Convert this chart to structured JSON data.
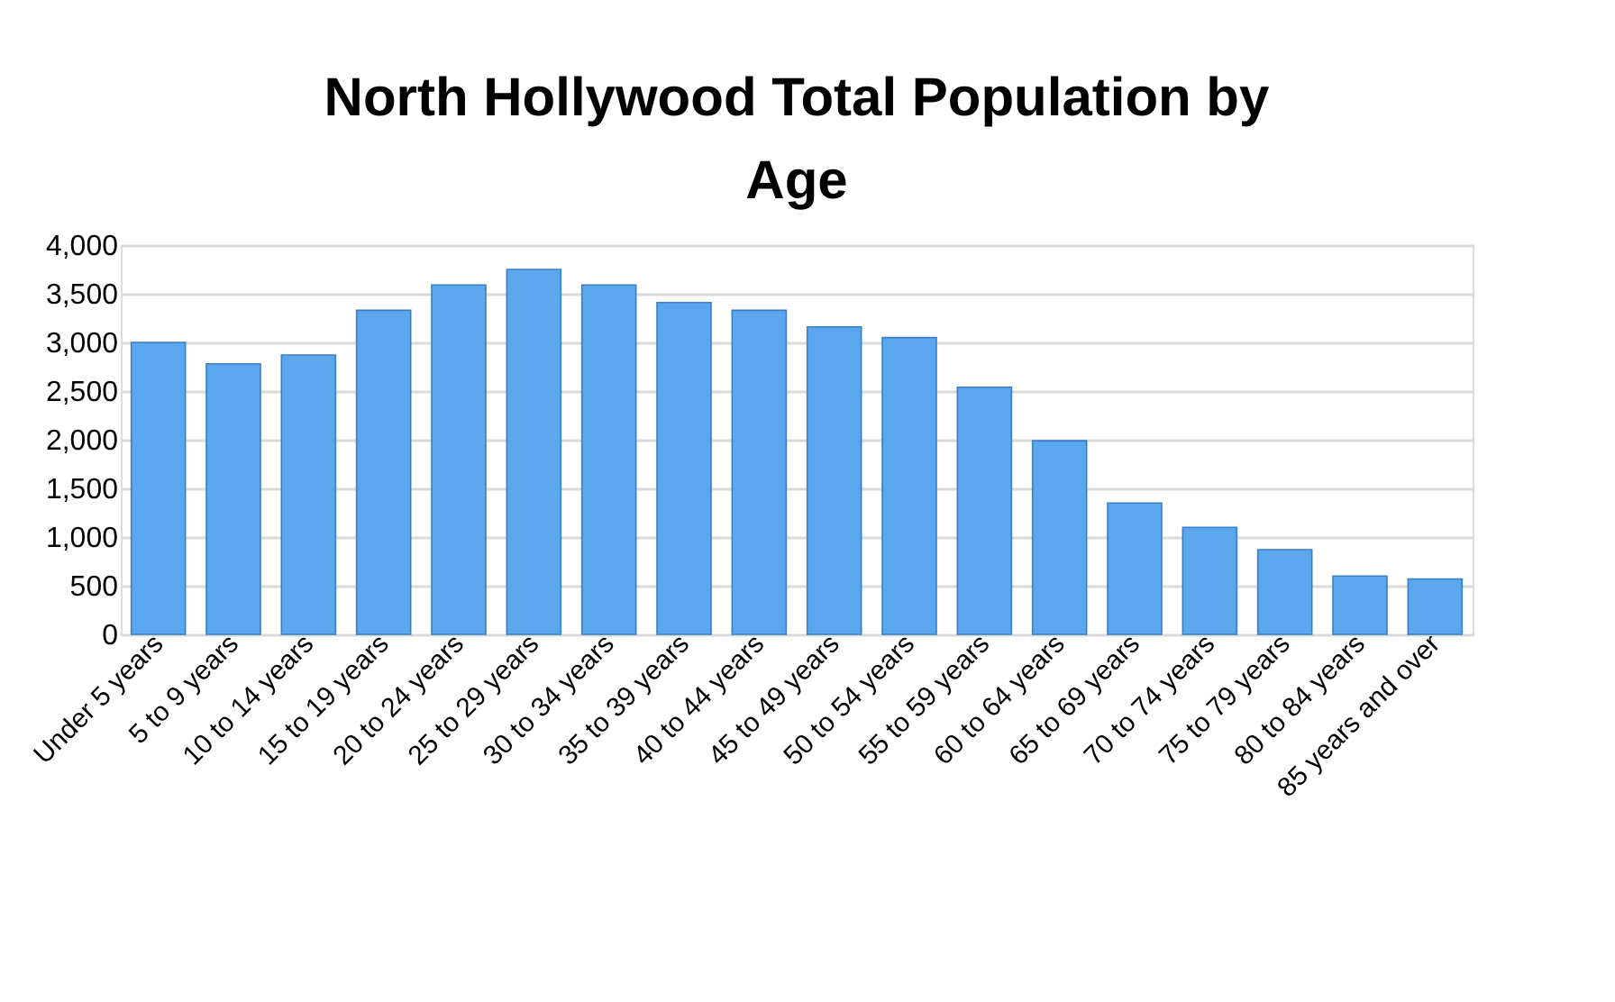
{
  "chart_data": {
    "type": "bar",
    "title": "North Hollywood Total Population by Age",
    "categories": [
      "Under 5 years",
      "5 to 9 years",
      "10 to 14 years",
      "15 to 19 years",
      "20 to 24 years",
      "25 to 29 years",
      "30 to 34 years",
      "35 to 39 years",
      "40 to 44 years",
      "45 to 49 years",
      "50 to 54 years",
      "55 to 59 years",
      "60 to 64 years",
      "65 to 69 years",
      "70 to 74 years",
      "75 to 79 years",
      "80 to 84 years",
      "85 years and over"
    ],
    "values": [
      3000,
      2780,
      2870,
      3330,
      3590,
      3750,
      3590,
      3410,
      3330,
      3160,
      3050,
      2540,
      1990,
      1350,
      1100,
      870,
      600,
      570
    ],
    "color": "#5aa7ee",
    "ylim": [
      0,
      4000
    ],
    "yticks": [
      {
        "value": 0,
        "label": "0"
      },
      {
        "value": 500,
        "label": "500"
      },
      {
        "value": 1000,
        "label": "1,000"
      },
      {
        "value": 1500,
        "label": "1,500"
      },
      {
        "value": 2000,
        "label": "2,000"
      },
      {
        "value": 2500,
        "label": "2,500"
      },
      {
        "value": 3000,
        "label": "3,000"
      },
      {
        "value": 3500,
        "label": "3,500"
      },
      {
        "value": 4000,
        "label": "4,000"
      }
    ],
    "grid": "y"
  }
}
